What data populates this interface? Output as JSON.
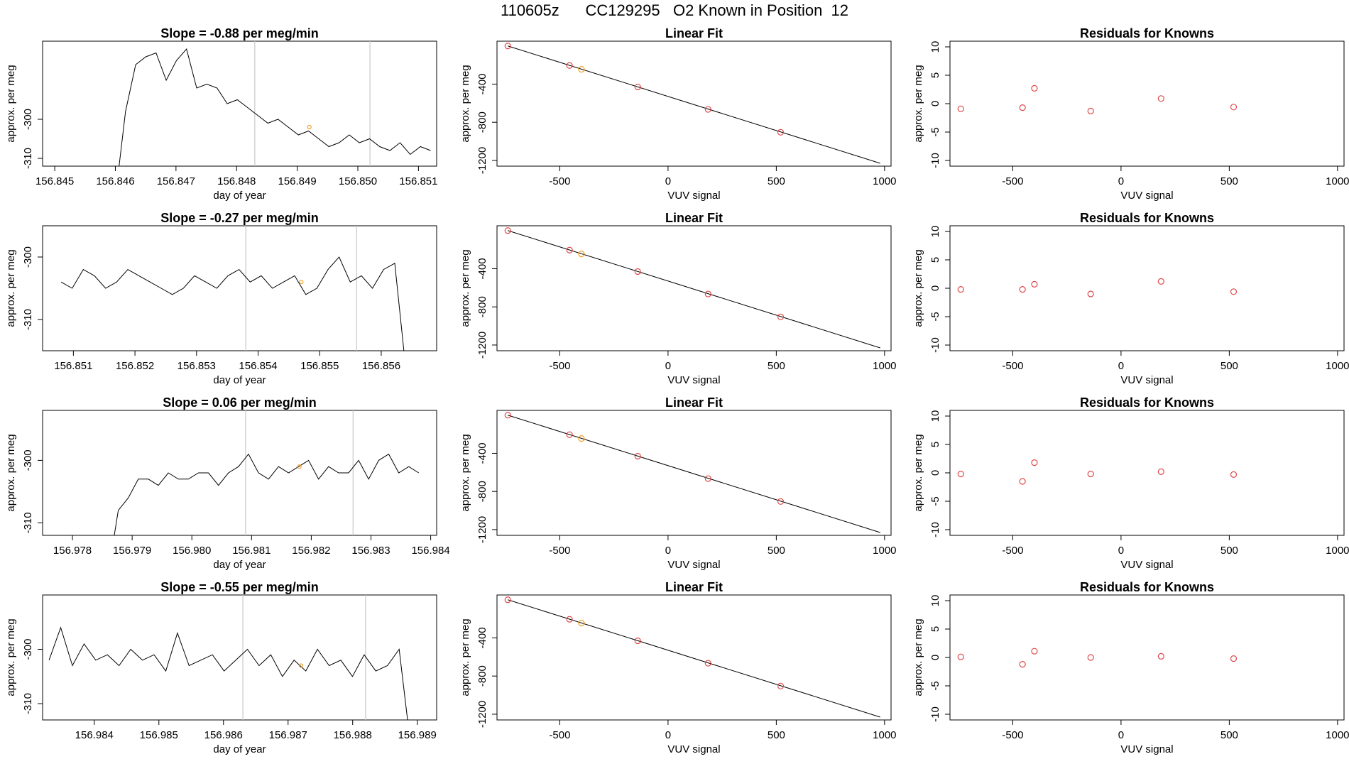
{
  "figure": {
    "title": "110605z      CC129295   O2 Known in Position  12"
  },
  "colors": {
    "trace": "#000000",
    "marker_red": "#e04848",
    "marker_orange": "#f0a020",
    "gridline": "#c8c8c8",
    "frame": "#000000"
  },
  "chart_data": [
    {
      "type": "line",
      "title": "Slope =  -0.88  per meg/min",
      "xlabel": "day of year",
      "ylabel": "approx. per meg",
      "xlim": [
        156.8448,
        156.8513
      ],
      "ylim": [
        -312,
        -280
      ],
      "xticks": [
        "156.845",
        "156.846",
        "156.847",
        "156.848",
        "156.849",
        "156.850",
        "156.851"
      ],
      "yticks": [
        -310,
        -300
      ],
      "vlines": [
        156.8483,
        156.8502
      ],
      "trace": {
        "x_start": 156.846,
        "x_end": 156.8512,
        "points": [
          -320,
          -298,
          -286,
          -284,
          -283,
          -290,
          -285,
          -282,
          -292,
          -291,
          -292,
          -296,
          -295,
          -297,
          -299,
          -301,
          -300,
          -302,
          -304,
          -303,
          -305,
          -307,
          -306,
          -304,
          -306,
          -305,
          -307,
          -308,
          -306,
          -309,
          -307,
          -308
        ]
      },
      "marker": {
        "x": 156.8492,
        "y": -302,
        "color": "orange"
      }
    },
    {
      "type": "scatter",
      "title": "Linear Fit",
      "xlabel": "VUV signal",
      "ylabel": "approx. per meg",
      "xlim": [
        -790,
        1030
      ],
      "ylim": [
        -1260,
        50
      ],
      "xticks": [
        -500,
        0,
        500,
        1000
      ],
      "yticks": [
        -1200,
        -800,
        -400
      ],
      "line": {
        "x": [
          -740,
          980
        ],
        "y": [
          0,
          -1230
        ]
      },
      "points": [
        {
          "x": -740,
          "y": 0,
          "color": "red"
        },
        {
          "x": -455,
          "y": -205,
          "color": "red"
        },
        {
          "x": -400,
          "y": -245,
          "color": "orange"
        },
        {
          "x": -140,
          "y": -430,
          "color": "red"
        },
        {
          "x": 185,
          "y": -665,
          "color": "red"
        },
        {
          "x": 520,
          "y": -905,
          "color": "red"
        }
      ]
    },
    {
      "type": "scatter",
      "title": "Residuals for Knowns",
      "xlabel": "VUV signal",
      "ylabel": "approx. per meg",
      "xlim": [
        -790,
        1030
      ],
      "ylim": [
        -11,
        11
      ],
      "xticks": [
        -500,
        0,
        500,
        1000
      ],
      "yticks": [
        -10,
        -5,
        0,
        5,
        10
      ],
      "points": [
        {
          "x": -740,
          "y": -0.9
        },
        {
          "x": -455,
          "y": -0.7
        },
        {
          "x": -400,
          "y": 2.7
        },
        {
          "x": -140,
          "y": -1.3
        },
        {
          "x": 185,
          "y": 0.9
        },
        {
          "x": 520,
          "y": -0.6
        }
      ]
    },
    {
      "type": "line",
      "title": "Slope =  -0.27  per meg/min",
      "xlabel": "day of year",
      "ylabel": "approx. per meg",
      "xlim": [
        156.8505,
        156.8569
      ],
      "ylim": [
        -315,
        -295
      ],
      "xticks": [
        "156.851",
        "156.852",
        "156.853",
        "156.854",
        "156.855",
        "156.856"
      ],
      "yticks": [
        -310,
        -300
      ],
      "vlines": [
        156.8538,
        156.8556
      ],
      "trace": {
        "x_start": 156.8508,
        "x_end": 156.8564,
        "points": [
          -304,
          -305,
          -302,
          -303,
          -305,
          -304,
          -302,
          -303,
          -304,
          -305,
          -306,
          -305,
          -303,
          -304,
          -305,
          -303,
          -302,
          -304,
          -303,
          -305,
          -304,
          -303,
          -306,
          -305,
          -302,
          -300,
          -304,
          -303,
          -305,
          -302,
          -301,
          -318
        ]
      },
      "marker": {
        "x": 156.8547,
        "y": -304,
        "color": "orange"
      }
    },
    {
      "type": "scatter",
      "title": "Linear Fit",
      "xlabel": "VUV signal",
      "ylabel": "approx. per meg",
      "xlim": [
        -790,
        1030
      ],
      "ylim": [
        -1260,
        50
      ],
      "xticks": [
        -500,
        0,
        500,
        1000
      ],
      "yticks": [
        -1200,
        -800,
        -400
      ],
      "line": {
        "x": [
          -740,
          980
        ],
        "y": [
          0,
          -1230
        ]
      },
      "points": [
        {
          "x": -740,
          "y": 0,
          "color": "red"
        },
        {
          "x": -455,
          "y": -205,
          "color": "red"
        },
        {
          "x": -400,
          "y": -245,
          "color": "orange"
        },
        {
          "x": -140,
          "y": -430,
          "color": "red"
        },
        {
          "x": 185,
          "y": -665,
          "color": "red"
        },
        {
          "x": 520,
          "y": -905,
          "color": "red"
        }
      ]
    },
    {
      "type": "scatter",
      "title": "Residuals for Knowns",
      "xlabel": "VUV signal",
      "ylabel": "approx. per meg",
      "xlim": [
        -790,
        1030
      ],
      "ylim": [
        -11,
        11
      ],
      "xticks": [
        -500,
        0,
        500,
        1000
      ],
      "yticks": [
        -10,
        -5,
        0,
        5,
        10
      ],
      "points": [
        {
          "x": -740,
          "y": -0.2
        },
        {
          "x": -455,
          "y": -0.2
        },
        {
          "x": -400,
          "y": 0.7
        },
        {
          "x": -140,
          "y": -1.0
        },
        {
          "x": 185,
          "y": 1.2
        },
        {
          "x": 520,
          "y": -0.6
        }
      ]
    },
    {
      "type": "line",
      "title": "Slope =  0.06  per meg/min",
      "xlabel": "day of year",
      "ylabel": "approx. per meg",
      "xlim": [
        156.9775,
        156.9841
      ],
      "ylim": [
        -312,
        -292
      ],
      "xticks": [
        "156.978",
        "156.979",
        "156.980",
        "156.981",
        "156.982",
        "156.983",
        "156.984"
      ],
      "yticks": [
        -310,
        -300
      ],
      "vlines": [
        156.9809,
        156.9827
      ],
      "trace": {
        "x_start": 156.9786,
        "x_end": 156.9838,
        "points": [
          -318,
          -308,
          -306,
          -303,
          -303,
          -304,
          -302,
          -303,
          -303,
          -302,
          -302,
          -304,
          -302,
          -301,
          -299,
          -302,
          -303,
          -301,
          -302,
          -301,
          -300,
          -303,
          -301,
          -302,
          -302,
          -300,
          -303,
          -300,
          -299,
          -302,
          -301,
          -302
        ]
      },
      "marker": {
        "x": 156.9818,
        "y": -301,
        "color": "orange"
      }
    },
    {
      "type": "scatter",
      "title": "Linear Fit",
      "xlabel": "VUV signal",
      "ylabel": "approx. per meg",
      "xlim": [
        -790,
        1030
      ],
      "ylim": [
        -1260,
        50
      ],
      "xticks": [
        -500,
        0,
        500,
        1000
      ],
      "yticks": [
        -1200,
        -800,
        -400
      ],
      "line": {
        "x": [
          -740,
          980
        ],
        "y": [
          0,
          -1230
        ]
      },
      "points": [
        {
          "x": -740,
          "y": 0,
          "color": "red"
        },
        {
          "x": -455,
          "y": -205,
          "color": "red"
        },
        {
          "x": -400,
          "y": -245,
          "color": "orange"
        },
        {
          "x": -140,
          "y": -430,
          "color": "red"
        },
        {
          "x": 185,
          "y": -665,
          "color": "red"
        },
        {
          "x": 520,
          "y": -905,
          "color": "red"
        }
      ]
    },
    {
      "type": "scatter",
      "title": "Residuals for Knowns",
      "xlabel": "VUV signal",
      "ylabel": "approx. per meg",
      "xlim": [
        -790,
        1030
      ],
      "ylim": [
        -11,
        11
      ],
      "xticks": [
        -500,
        0,
        500,
        1000
      ],
      "yticks": [
        -10,
        -5,
        0,
        5,
        10
      ],
      "points": [
        {
          "x": -740,
          "y": -0.2
        },
        {
          "x": -455,
          "y": -1.5
        },
        {
          "x": -400,
          "y": 1.8
        },
        {
          "x": -140,
          "y": -0.2
        },
        {
          "x": 185,
          "y": 0.2
        },
        {
          "x": 520,
          "y": -0.3
        }
      ]
    },
    {
      "type": "line",
      "title": "Slope =  -0.55  per meg/min",
      "xlabel": "day of year",
      "ylabel": "approx. per meg",
      "xlim": [
        156.9832,
        156.9893
      ],
      "ylim": [
        -313,
        -290
      ],
      "xticks": [
        "156.984",
        "156.985",
        "156.986",
        "156.987",
        "156.988",
        "156.989"
      ],
      "yticks": [
        -310,
        -300
      ],
      "vlines": [
        156.9863,
        156.9882
      ],
      "trace": {
        "x_start": 156.9833,
        "x_end": 156.9889,
        "points": [
          -302,
          -296,
          -303,
          -299,
          -302,
          -301,
          -303,
          -300,
          -302,
          -301,
          -304,
          -297,
          -303,
          -302,
          -301,
          -304,
          -302,
          -300,
          -303,
          -301,
          -305,
          -302,
          -304,
          -300,
          -303,
          -302,
          -305,
          -301,
          -304,
          -303,
          -300,
          -318
        ]
      },
      "marker": {
        "x": 156.9872,
        "y": -303,
        "color": "orange"
      }
    },
    {
      "type": "scatter",
      "title": "Linear Fit",
      "xlabel": "VUV signal",
      "ylabel": "approx. per meg",
      "xlim": [
        -790,
        1030
      ],
      "ylim": [
        -1260,
        50
      ],
      "xticks": [
        -500,
        0,
        500,
        1000
      ],
      "yticks": [
        -1200,
        -800,
        -400
      ],
      "line": {
        "x": [
          -740,
          980
        ],
        "y": [
          0,
          -1230
        ]
      },
      "points": [
        {
          "x": -740,
          "y": 0,
          "color": "red"
        },
        {
          "x": -455,
          "y": -205,
          "color": "red"
        },
        {
          "x": -400,
          "y": -245,
          "color": "orange"
        },
        {
          "x": -140,
          "y": -430,
          "color": "red"
        },
        {
          "x": 185,
          "y": -665,
          "color": "red"
        },
        {
          "x": 520,
          "y": -905,
          "color": "red"
        }
      ]
    },
    {
      "type": "scatter",
      "title": "Residuals for Knowns",
      "xlabel": "VUV signal",
      "ylabel": "approx. per meg",
      "xlim": [
        -790,
        1030
      ],
      "ylim": [
        -11,
        11
      ],
      "xticks": [
        -500,
        0,
        500,
        1000
      ],
      "yticks": [
        -10,
        -5,
        0,
        5,
        10
      ],
      "points": [
        {
          "x": -740,
          "y": 0.1
        },
        {
          "x": -455,
          "y": -1.2
        },
        {
          "x": -400,
          "y": 1.1
        },
        {
          "x": -140,
          "y": 0.0
        },
        {
          "x": 185,
          "y": 0.2
        },
        {
          "x": 520,
          "y": -0.2
        }
      ]
    }
  ]
}
